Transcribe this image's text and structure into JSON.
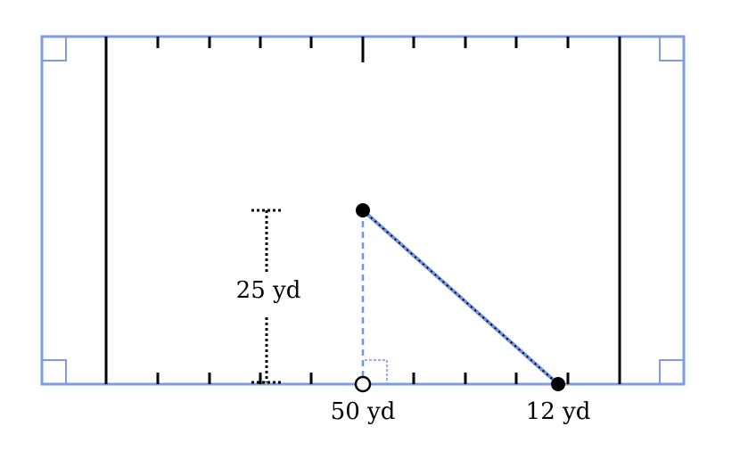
{
  "diagram": {
    "vertical_measure_label": "25 yd",
    "bottom_labels": {
      "midfield": "50 yd",
      "endpoint": "12 yd"
    },
    "colors": {
      "field_border": "#7b9ce6",
      "construction": "#6f94e8",
      "ink": "#000000",
      "background": "#ffffff"
    }
  }
}
